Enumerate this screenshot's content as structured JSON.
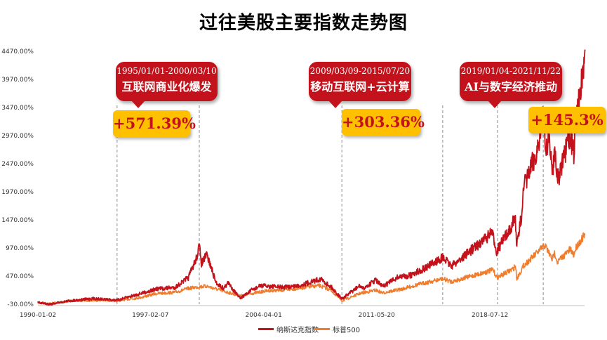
{
  "title": "过往美股主要指数走势图",
  "colors": {
    "nasdaq": "#c3121b",
    "sp500": "#ee7d2f",
    "callout": "#c3121b",
    "badge": "#ffc000"
  },
  "callouts": [
    {
      "date_range": "1995/01/01-2000/03/10",
      "theme": "互联网商业化爆发",
      "return": "+571.39%"
    },
    {
      "date_range": "2009/03/09-2015/07/20",
      "theme": "移动互联网+云计算",
      "return": "+303.36%"
    },
    {
      "date_range": "2019/01/04-2021/11/22",
      "theme": "AI与数字经济推动",
      "return": "+145.3%"
    }
  ],
  "chart_data": {
    "type": "line",
    "title": "过往美股主要指数走势图",
    "xlabel": "",
    "ylabel": "",
    "x_tick_labels": [
      "1990-01-02",
      "1997-02-07",
      "2004-04-01",
      "2011-05-20",
      "2018-07-12"
    ],
    "y_tick_labels": [
      "-30.00%",
      "470.00%",
      "970.00%",
      "1470.00%",
      "1970.00%",
      "2470.00%",
      "2970.00%",
      "3470.00%",
      "3970.00%",
      "4470.00%"
    ],
    "x_range": [
      "1990-01-02",
      "2024-07-01"
    ],
    "ylim": [
      -30,
      4470
    ],
    "grid": false,
    "legend_position": "bottom",
    "event_dates": [
      "1995-01-01",
      "2000-03-10",
      "2009-03-09",
      "2015-07-20",
      "2019-01-04",
      "2021-11-22"
    ],
    "series": [
      {
        "name": "纳斯达克指数",
        "points": [
          [
            "1990-01-02",
            0
          ],
          [
            "1990-10-01",
            -30
          ],
          [
            "1991-12-31",
            30
          ],
          [
            "1993-06-30",
            70
          ],
          [
            "1995-01-01",
            40
          ],
          [
            "1996-06-30",
            160
          ],
          [
            "1997-06-30",
            240
          ],
          [
            "1998-09-01",
            270
          ],
          [
            "1999-06-30",
            440
          ],
          [
            "1999-12-31",
            780
          ],
          [
            "2000-03-10",
            1000
          ],
          [
            "2000-05-01",
            700
          ],
          [
            "2000-09-01",
            850
          ],
          [
            "2001-04-01",
            350
          ],
          [
            "2001-09-21",
            250
          ],
          [
            "2002-01-01",
            350
          ],
          [
            "2002-10-09",
            70
          ],
          [
            "2003-06-30",
            220
          ],
          [
            "2004-01-30",
            300
          ],
          [
            "2005-06-30",
            270
          ],
          [
            "2006-06-30",
            300
          ],
          [
            "2007-10-31",
            420
          ],
          [
            "2008-06-30",
            280
          ],
          [
            "2009-03-09",
            65
          ],
          [
            "2010-04-30",
            300
          ],
          [
            "2010-06-30",
            240
          ],
          [
            "2011-04-29",
            400
          ],
          [
            "2011-10-03",
            280
          ],
          [
            "2012-09-14",
            450
          ],
          [
            "2013-06-30",
            480
          ],
          [
            "2014-06-30",
            620
          ],
          [
            "2015-07-20",
            800
          ],
          [
            "2016-02-11",
            650
          ],
          [
            "2017-01-31",
            870
          ],
          [
            "2017-12-29",
            1080
          ],
          [
            "2018-08-29",
            1240
          ],
          [
            "2018-12-24",
            890
          ],
          [
            "2019-01-04",
            940
          ],
          [
            "2019-07-26",
            1200
          ],
          [
            "2020-02-19",
            1500
          ],
          [
            "2020-03-23",
            1000
          ],
          [
            "2020-06-30",
            1500
          ],
          [
            "2020-09-02",
            2050
          ],
          [
            "2021-02-12",
            2400
          ],
          [
            "2021-06-30",
            2700
          ],
          [
            "2021-11-22",
            3300
          ],
          [
            "2022-01-28",
            2700
          ],
          [
            "2022-03-29",
            3000
          ],
          [
            "2022-06-16",
            2300
          ],
          [
            "2022-08-16",
            2750
          ],
          [
            "2022-10-14",
            2200
          ],
          [
            "2022-12-28",
            2350
          ],
          [
            "2023-07-31",
            2950
          ],
          [
            "2023-10-27",
            2650
          ],
          [
            "2023-12-29",
            3400
          ],
          [
            "2024-03-28",
            3800
          ],
          [
            "2024-07-10",
            4500
          ]
        ]
      },
      {
        "name": "标普500",
        "points": [
          [
            "1990-01-02",
            0
          ],
          [
            "1990-10-01",
            -20
          ],
          [
            "1991-12-31",
            30
          ],
          [
            "1993-12-31",
            40
          ],
          [
            "1995-01-01",
            30
          ],
          [
            "1996-06-30",
            90
          ],
          [
            "1997-06-30",
            160
          ],
          [
            "1998-09-01",
            180
          ],
          [
            "1999-06-30",
            250
          ],
          [
            "2000-03-10",
            280
          ],
          [
            "2000-09-01",
            290
          ],
          [
            "2001-09-21",
            200
          ],
          [
            "2002-10-09",
            120
          ],
          [
            "2003-06-30",
            160
          ],
          [
            "2004-06-30",
            210
          ],
          [
            "2005-06-30",
            220
          ],
          [
            "2007-10-09",
            300
          ],
          [
            "2008-06-30",
            220
          ],
          [
            "2009-03-09",
            30
          ],
          [
            "2010-04-30",
            160
          ],
          [
            "2011-04-29",
            220
          ],
          [
            "2011-10-03",
            170
          ],
          [
            "2012-12-31",
            240
          ],
          [
            "2013-12-31",
            320
          ],
          [
            "2015-07-20",
            420
          ],
          [
            "2016-02-11",
            370
          ],
          [
            "2017-12-29",
            520
          ],
          [
            "2018-09-20",
            580
          ],
          [
            "2018-12-24",
            440
          ],
          [
            "2019-12-31",
            600
          ],
          [
            "2020-02-19",
            660
          ],
          [
            "2020-03-23",
            420
          ],
          [
            "2020-08-31",
            660
          ],
          [
            "2021-06-30",
            880
          ],
          [
            "2021-12-31",
            1020
          ],
          [
            "2022-06-16",
            770
          ],
          [
            "2022-08-16",
            890
          ],
          [
            "2022-10-12",
            720
          ],
          [
            "2023-07-31",
            940
          ],
          [
            "2023-10-27",
            850
          ],
          [
            "2023-12-29",
            1000
          ],
          [
            "2024-03-28",
            1100
          ],
          [
            "2024-07-10",
            1200
          ]
        ]
      }
    ]
  }
}
